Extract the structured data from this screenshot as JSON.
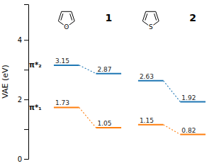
{
  "chart_data": {
    "type": "energy_levels",
    "y_label": "VAE (eV)",
    "categories": [
      null,
      "1",
      null,
      "2"
    ],
    "annotations": [
      "O",
      "S"
    ],
    "series": [
      {
        "name": "π*₂",
        "values": [
          3.15,
          2.87,
          2.63,
          1.92
        ]
      },
      {
        "name": "π*₁",
        "values": [
          1.73,
          1.05,
          1.15,
          0.82
        ]
      }
    ],
    "ylim": [
      0,
      5.2
    ],
    "yticks": [
      0,
      {
        "value": 1,
        "label": ""
      },
      2,
      {
        "value": 3,
        "label": ""
      },
      4
    ],
    "data_labels": true,
    "grid": false
  }
}
